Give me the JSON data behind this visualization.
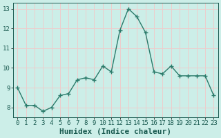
{
  "x": [
    0,
    1,
    2,
    3,
    4,
    5,
    6,
    7,
    8,
    9,
    10,
    11,
    12,
    13,
    14,
    15,
    16,
    17,
    18,
    19,
    20,
    21,
    22,
    23
  ],
  "y": [
    9.0,
    8.1,
    8.1,
    7.8,
    8.0,
    8.6,
    8.7,
    9.4,
    9.5,
    9.4,
    10.1,
    9.8,
    11.9,
    13.0,
    12.6,
    11.8,
    9.8,
    9.7,
    10.1,
    9.6,
    9.6,
    9.6,
    9.6,
    8.6
  ],
  "line_color": "#2a7a6a",
  "marker": "+",
  "marker_size": 4,
  "marker_lw": 1.0,
  "bg_color": "#cceee8",
  "grid_color": "#eecccc",
  "xlabel": "Humidex (Indice chaleur)",
  "xlabel_fontsize": 8,
  "ylim": [
    7.5,
    13.3
  ],
  "xlim": [
    -0.5,
    23.5
  ],
  "yticks": [
    8,
    9,
    10,
    11,
    12,
    13
  ],
  "xticks": [
    0,
    1,
    2,
    3,
    4,
    5,
    6,
    7,
    8,
    9,
    10,
    11,
    12,
    13,
    14,
    15,
    16,
    17,
    18,
    19,
    20,
    21,
    22,
    23
  ],
  "tick_fontsize": 6.5,
  "line_width": 1.0,
  "text_color": "#1a5a50"
}
